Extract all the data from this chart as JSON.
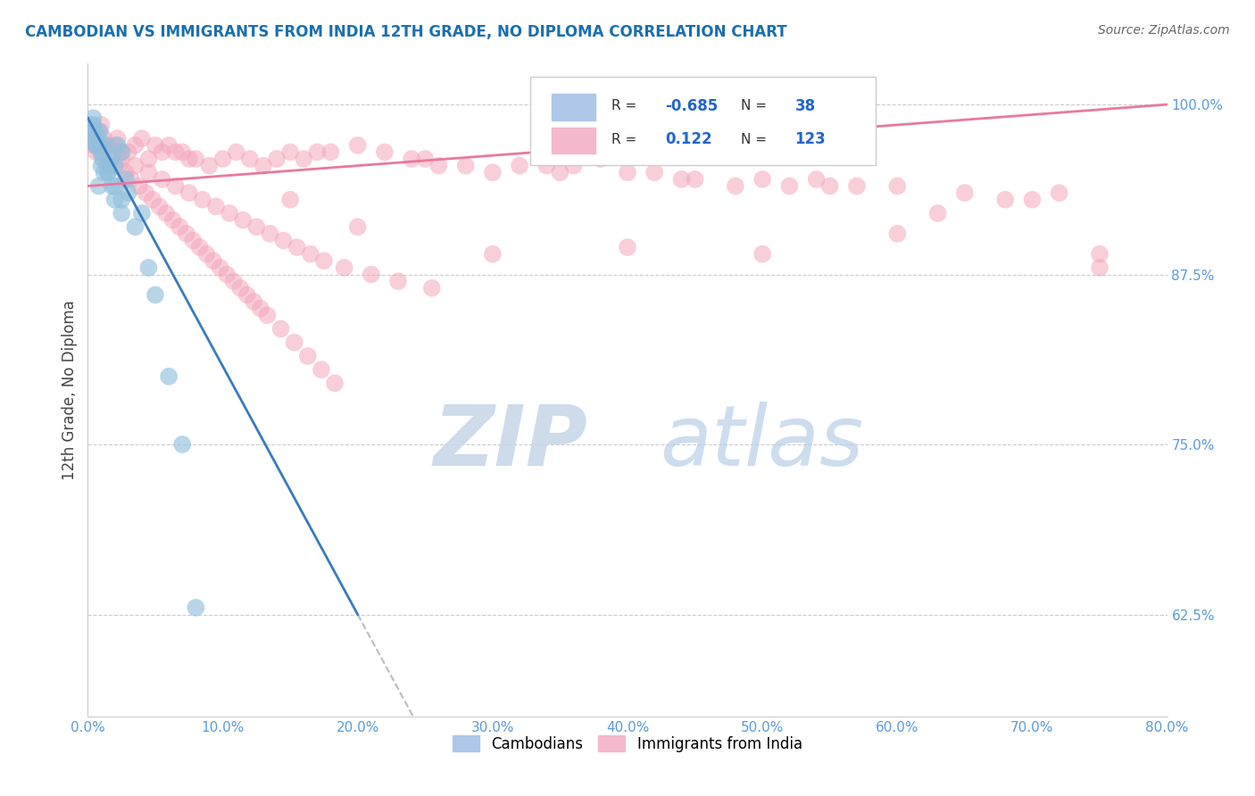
{
  "title": "CAMBODIAN VS IMMIGRANTS FROM INDIA 12TH GRADE, NO DIPLOMA CORRELATION CHART",
  "source": "Source: ZipAtlas.com",
  "ylabel_label": "12th Grade, No Diploma",
  "legend_label1": "Cambodians",
  "legend_label2": "Immigrants from India",
  "r1": "-0.685",
  "n1": "38",
  "r2": "0.122",
  "n2": "123",
  "xmin": 0.0,
  "xmax": 80.0,
  "ymin": 55.0,
  "ymax": 103.0,
  "ytick_vals": [
    62.5,
    75.0,
    87.5,
    100.0
  ],
  "blue_color": "#92c0dd",
  "pink_color": "#f4a6bb",
  "blue_line_color": "#3a7abf",
  "pink_line_color": "#e8799e",
  "watermark_zip": "ZIP",
  "watermark_atlas": "atlas",
  "blue_scatter_x": [
    0.2,
    0.3,
    0.4,
    0.5,
    0.6,
    0.7,
    0.8,
    0.9,
    1.0,
    1.0,
    1.1,
    1.2,
    1.3,
    1.5,
    1.5,
    1.8,
    1.8,
    2.0,
    2.0,
    2.2,
    2.5,
    2.5,
    2.8,
    3.0,
    3.5,
    4.0,
    4.5,
    5.0,
    1.0,
    2.0,
    6.0,
    7.0,
    8.0,
    0.3,
    1.5,
    2.5,
    0.4,
    0.6
  ],
  "blue_scatter_y": [
    98.5,
    97.5,
    99.0,
    98.0,
    97.0,
    97.5,
    94.0,
    98.0,
    97.0,
    96.5,
    96.0,
    95.0,
    97.0,
    95.5,
    95.0,
    96.0,
    94.0,
    95.5,
    94.0,
    97.0,
    96.5,
    93.0,
    94.5,
    93.5,
    91.0,
    92.0,
    88.0,
    86.0,
    95.5,
    93.0,
    80.0,
    75.0,
    63.0,
    97.5,
    95.0,
    92.0,
    98.5,
    97.0
  ],
  "pink_scatter_x": [
    0.3,
    0.5,
    0.8,
    1.0,
    1.2,
    1.5,
    1.8,
    2.0,
    2.2,
    2.5,
    3.0,
    3.5,
    4.0,
    4.5,
    5.0,
    5.5,
    6.0,
    6.5,
    7.0,
    7.5,
    8.0,
    9.0,
    10.0,
    11.0,
    12.0,
    13.0,
    14.0,
    15.0,
    16.0,
    17.0,
    18.0,
    20.0,
    22.0,
    24.0,
    25.0,
    26.0,
    28.0,
    30.0,
    32.0,
    34.0,
    35.0,
    36.0,
    38.0,
    40.0,
    42.0,
    44.0,
    45.0,
    48.0,
    50.0,
    52.0,
    54.0,
    55.0,
    57.0,
    60.0,
    63.0,
    65.0,
    68.0,
    70.0,
    72.0,
    75.0,
    0.4,
    0.6,
    0.9,
    1.3,
    1.6,
    2.3,
    2.8,
    3.2,
    3.8,
    4.3,
    4.8,
    5.3,
    5.8,
    6.3,
    6.8,
    7.3,
    7.8,
    8.3,
    8.8,
    9.3,
    9.8,
    10.3,
    10.8,
    11.3,
    11.8,
    12.3,
    12.8,
    13.3,
    14.3,
    15.3,
    16.3,
    17.3,
    18.3,
    2.5,
    3.5,
    4.5,
    5.5,
    6.5,
    7.5,
    8.5,
    9.5,
    10.5,
    11.5,
    12.5,
    13.5,
    14.5,
    15.5,
    16.5,
    17.5,
    19.0,
    21.0,
    23.0,
    25.5,
    15.0,
    20.0,
    30.0,
    40.0,
    50.0,
    60.0,
    75.0
  ],
  "pink_scatter_y": [
    98.0,
    97.5,
    98.0,
    98.5,
    97.5,
    97.0,
    96.5,
    97.0,
    97.5,
    96.5,
    96.5,
    97.0,
    97.5,
    96.0,
    97.0,
    96.5,
    97.0,
    96.5,
    96.5,
    96.0,
    96.0,
    95.5,
    96.0,
    96.5,
    96.0,
    95.5,
    96.0,
    96.5,
    96.0,
    96.5,
    96.5,
    97.0,
    96.5,
    96.0,
    96.0,
    95.5,
    95.5,
    95.0,
    95.5,
    95.5,
    95.0,
    95.5,
    96.0,
    95.0,
    95.0,
    94.5,
    94.5,
    94.0,
    94.5,
    94.0,
    94.5,
    94.0,
    94.0,
    94.0,
    92.0,
    93.5,
    93.0,
    93.0,
    93.5,
    89.0,
    97.0,
    96.5,
    96.5,
    96.0,
    95.5,
    95.5,
    95.0,
    94.5,
    94.0,
    93.5,
    93.0,
    92.5,
    92.0,
    91.5,
    91.0,
    90.5,
    90.0,
    89.5,
    89.0,
    88.5,
    88.0,
    87.5,
    87.0,
    86.5,
    86.0,
    85.5,
    85.0,
    84.5,
    83.5,
    82.5,
    81.5,
    80.5,
    79.5,
    96.0,
    95.5,
    95.0,
    94.5,
    94.0,
    93.5,
    93.0,
    92.5,
    92.0,
    91.5,
    91.0,
    90.5,
    90.0,
    89.5,
    89.0,
    88.5,
    88.0,
    87.5,
    87.0,
    86.5,
    93.0,
    91.0,
    89.0,
    89.5,
    89.0,
    90.5,
    88.0
  ]
}
